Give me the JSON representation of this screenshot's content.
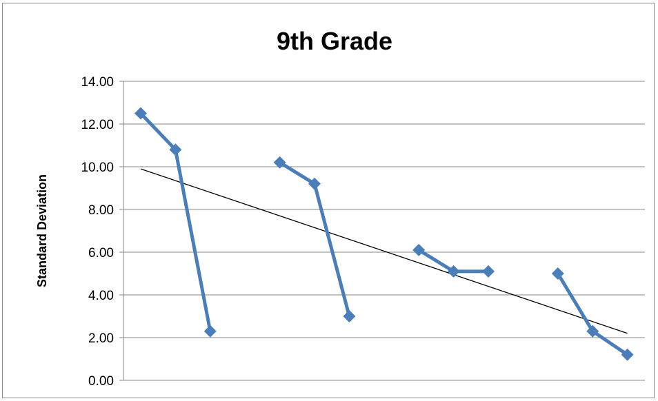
{
  "chart_data": {
    "type": "line",
    "title": "9th Grade",
    "ylabel": "Standard Deviation",
    "xlabel": "",
    "ylim": [
      0,
      14
    ],
    "yticks": [
      0,
      2,
      4,
      6,
      8,
      10,
      12,
      14
    ],
    "ytick_labels": [
      "0.00",
      "2.00",
      "4.00",
      "6.00",
      "8.00",
      "10.00",
      "12.00",
      "14.00"
    ],
    "grid": true,
    "legend": "none",
    "x": [
      1,
      2,
      3,
      4,
      5,
      6,
      7,
      8,
      9,
      10,
      11,
      12,
      13,
      14,
      15
    ],
    "segments": [
      [
        12.5,
        10.8,
        2.3
      ],
      [
        10.2,
        9.2,
        3.0
      ],
      [
        6.1,
        5.1,
        5.1
      ],
      [
        5.0,
        2.3,
        1.2
      ]
    ],
    "trendline": {
      "type": "linear",
      "start": 9.9,
      "end": 2.2
    },
    "colors": {
      "series": "#4a7ebb",
      "trendline": "#000000",
      "grid": "#868686"
    }
  }
}
